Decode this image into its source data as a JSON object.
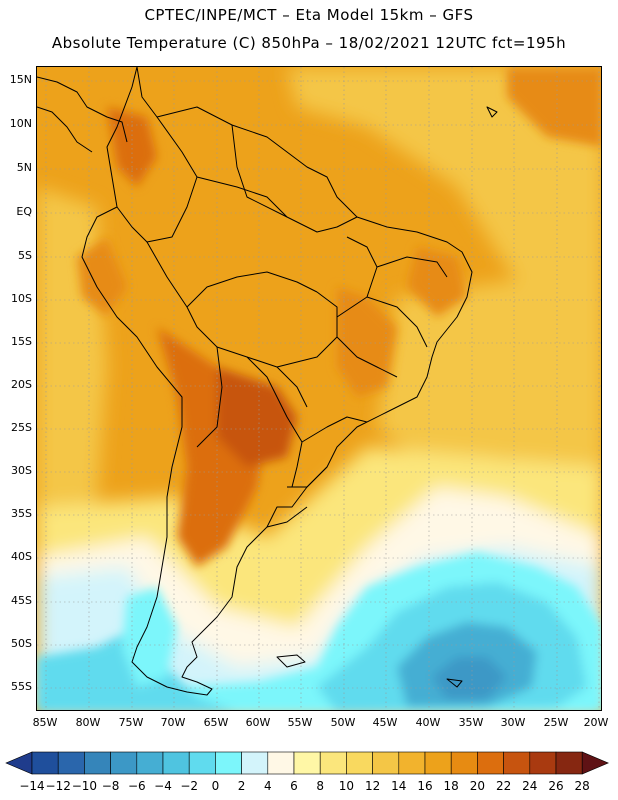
{
  "title": {
    "line1": "CPTEC/INPE/MCT –  Eta Model 15km – GFS",
    "line2": "Absolute Temperature (C) 850hPa – 18/02/2021 12UTC fct=195h"
  },
  "map": {
    "lat_labels": [
      "15N",
      "10N",
      "5N",
      "EQ",
      "5S",
      "10S",
      "15S",
      "20S",
      "25S",
      "30S",
      "35S",
      "40S",
      "45S",
      "50S",
      "55S"
    ],
    "lon_labels": [
      "85W",
      "80W",
      "75W",
      "70W",
      "65W",
      "60W",
      "55W",
      "50W",
      "45W",
      "40W",
      "35W",
      "30W",
      "25W",
      "20W"
    ]
  },
  "colorbar": {
    "levels": [
      "-14",
      "-12",
      "-10",
      "-8",
      "-6",
      "-4",
      "-2",
      "0",
      "2",
      "4",
      "6",
      "8",
      "10",
      "12",
      "14",
      "16",
      "18",
      "20",
      "22",
      "24",
      "26",
      "28"
    ],
    "colors": [
      "#1f3c8c",
      "#1f4f9c",
      "#2a66ac",
      "#3585ba",
      "#3c98c6",
      "#45aed3",
      "#4fc4e0",
      "#60dbee",
      "#7cf6fb",
      "#d3f4fb",
      "#fff8e6",
      "#fff7a6",
      "#fbe67c",
      "#f9d95f",
      "#f4c646",
      "#f2b32d",
      "#eda21b",
      "#e78b12",
      "#dc6e0e",
      "#c7540f",
      "#a93a10",
      "#862711",
      "#5f1215"
    ]
  }
}
